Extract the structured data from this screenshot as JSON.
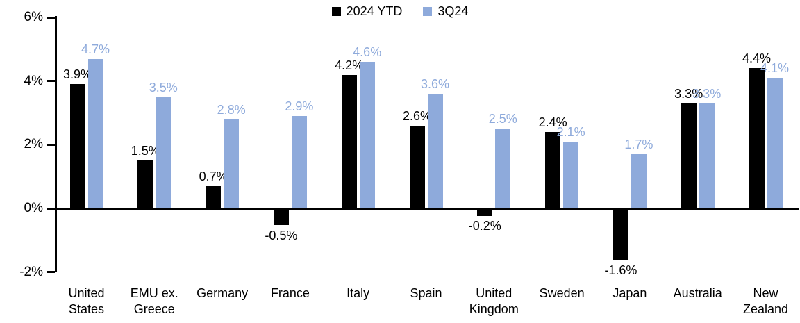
{
  "chart_data": {
    "type": "bar",
    "title": "",
    "categories": [
      "United\nStates",
      "EMU ex.\nGreece",
      "Germany",
      "France",
      "Italy",
      "Spain",
      "United\nKingdom",
      "Sweden",
      "Japan",
      "Australia",
      "New\nZealand"
    ],
    "series": [
      {
        "name": "2024 YTD",
        "color": "#000000",
        "values": [
          3.9,
          1.5,
          0.7,
          -0.5,
          4.2,
          2.6,
          -0.2,
          2.4,
          -1.6,
          3.3,
          4.4
        ],
        "labels": [
          "3.9%",
          "1.5%",
          "0.7%",
          "-0.5%",
          "4.2%",
          "2.6%",
          "-0.2%",
          "2.4%",
          "-1.6%",
          "3.3%",
          "4.4%"
        ]
      },
      {
        "name": "3Q24",
        "color": "#8EAADB",
        "values": [
          4.7,
          3.5,
          2.8,
          2.9,
          4.6,
          3.6,
          2.5,
          2.1,
          1.7,
          3.3,
          4.1
        ],
        "labels": [
          "4.7%",
          "3.5%",
          "2.8%",
          "2.9%",
          "4.6%",
          "3.6%",
          "2.5%",
          "2.1%",
          "1.7%",
          "3.3%",
          "4.1%"
        ]
      }
    ],
    "y_axis": {
      "ticks": [
        {
          "label": "6%",
          "value": 6
        },
        {
          "label": "4%",
          "value": 4
        },
        {
          "label": "2%",
          "value": 2
        },
        {
          "label": "0%",
          "value": 0
        },
        {
          "label": "-2%",
          "value": -2
        }
      ],
      "ylim": [
        -2,
        6
      ]
    },
    "legend": {
      "position": "top-center"
    },
    "grid": "off",
    "axis_color": "#000000",
    "background": "#FFFFFF"
  }
}
